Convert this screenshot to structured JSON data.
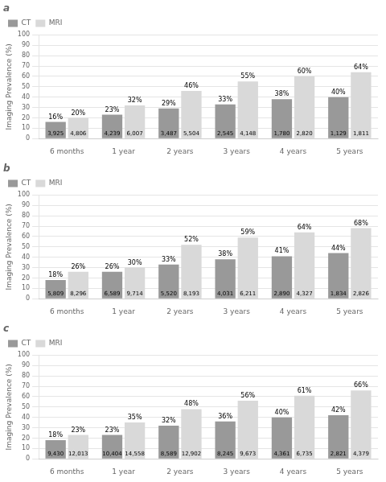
{
  "chart_data": [
    {
      "type": "bar",
      "title": "a",
      "categories": [
        "6 months",
        "1 year",
        "2 years",
        "3 years",
        "4 years",
        "5 years"
      ],
      "series": [
        {
          "name": "CT",
          "color": "#999999",
          "values": [
            16,
            23,
            29,
            33,
            38,
            40
          ],
          "value_labels": [
            "16%",
            "23%",
            "29%",
            "33%",
            "38%",
            "40%"
          ],
          "n": [
            3925,
            4239,
            3487,
            2545,
            1780,
            1129
          ],
          "n_labels": [
            "3,925",
            "4,239",
            "3,487",
            "2,545",
            "1,780",
            "1,129"
          ]
        },
        {
          "name": "MRI",
          "color": "#d9d9d9",
          "values": [
            20,
            32,
            46,
            55,
            60,
            64
          ],
          "value_labels": [
            "20%",
            "32%",
            "46%",
            "55%",
            "60%",
            "64%"
          ],
          "n": [
            4806,
            6007,
            5504,
            4148,
            2820,
            1811
          ],
          "n_labels": [
            "4,806",
            "6,007",
            "5,504",
            "4,148",
            "2,820",
            "1,811"
          ]
        }
      ],
      "ylabel": "Imaging Prevalence (%)",
      "ylim": [
        0,
        100
      ],
      "yticks": [
        0,
        10,
        20,
        30,
        40,
        50,
        60,
        70,
        80,
        90,
        100
      ],
      "grid": true,
      "legend": "upper left",
      "data_labels": true
    },
    {
      "type": "bar",
      "title": "b",
      "categories": [
        "6 months",
        "1 year",
        "2 years",
        "3 years",
        "4 years",
        "5 years"
      ],
      "series": [
        {
          "name": "CT",
          "color": "#999999",
          "values": [
            18,
            26,
            33,
            38,
            41,
            44
          ],
          "value_labels": [
            "18%",
            "26%",
            "33%",
            "38%",
            "41%",
            "44%"
          ],
          "n": [
            5809,
            6589,
            5520,
            4031,
            2890,
            1834
          ],
          "n_labels": [
            "5,809",
            "6,589",
            "5,520",
            "4,031",
            "2,890",
            "1,834"
          ]
        },
        {
          "name": "MRI",
          "color": "#d9d9d9",
          "values": [
            26,
            30,
            52,
            59,
            64,
            68
          ],
          "value_labels": [
            "26%",
            "30%",
            "52%",
            "59%",
            "64%",
            "68%"
          ],
          "n": [
            8296,
            9714,
            8193,
            6211,
            4327,
            2826
          ],
          "n_labels": [
            "8,296",
            "9,714",
            "8,193",
            "6,211",
            "4,327",
            "2,826"
          ]
        }
      ],
      "ylabel": "Imaging Prevalence (%)",
      "ylim": [
        0,
        100
      ],
      "yticks": [
        0,
        10,
        20,
        30,
        40,
        50,
        60,
        70,
        80,
        90,
        100
      ],
      "grid": true,
      "legend": "upper left",
      "data_labels": true
    },
    {
      "type": "bar",
      "title": "c",
      "categories": [
        "6 months",
        "1 year",
        "2 years",
        "3 years",
        "4 years",
        "5 years"
      ],
      "series": [
        {
          "name": "CT",
          "color": "#999999",
          "values": [
            18,
            23,
            32,
            36,
            40,
            42
          ],
          "value_labels": [
            "18%",
            "23%",
            "32%",
            "36%",
            "40%",
            "42%"
          ],
          "n": [
            9430,
            10404,
            8589,
            8245,
            4361,
            2821
          ],
          "n_labels": [
            "9,430",
            "10,404",
            "8,589",
            "8,245",
            "4,361",
            "2,821"
          ]
        },
        {
          "name": "MRI",
          "color": "#d9d9d9",
          "values": [
            23,
            35,
            48,
            56,
            61,
            66
          ],
          "value_labels": [
            "23%",
            "35%",
            "48%",
            "56%",
            "61%",
            "66%"
          ],
          "n": [
            12013,
            14558,
            12902,
            9673,
            6735,
            4379
          ],
          "n_labels": [
            "12,013",
            "14,558",
            "12,902",
            "9,673",
            "6,735",
            "4,379"
          ]
        }
      ],
      "ylabel": "Imaging Prevalence (%)",
      "ylim": [
        0,
        100
      ],
      "yticks": [
        0,
        10,
        20,
        30,
        40,
        50,
        60,
        70,
        80,
        90,
        100
      ],
      "grid": true,
      "legend": "upper left",
      "data_labels": true
    }
  ]
}
